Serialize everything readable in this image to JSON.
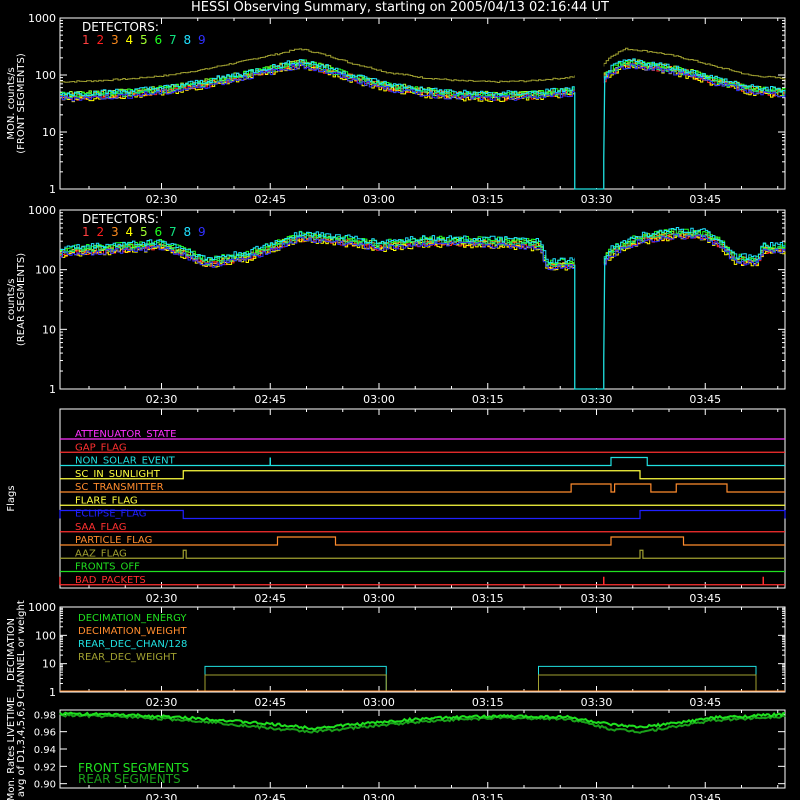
{
  "title": "HESSI Observing Summary, starting on 2005/04/13 02:16:44 UT",
  "time_ticks": [
    "02:30",
    "02:45",
    "03:00",
    "03:15",
    "03:30",
    "03:45"
  ],
  "time_ticks_min": [
    14,
    29,
    44,
    59,
    74,
    89
  ],
  "time_range_min": [
    0,
    100
  ],
  "detector_colors": [
    "#ff4040",
    "#ff2020",
    "#ff8c1e",
    "#ffff00",
    "#a0ff30",
    "#20ff20",
    "#10e080",
    "#20e0ff",
    "#3030ff"
  ],
  "detector_labels": [
    "1",
    "2",
    "3",
    "4",
    "5",
    "6",
    "7",
    "8",
    "9"
  ],
  "colors": {
    "green": "#20e020",
    "cyan": "#20e0e0",
    "orange": "#ff8c2e",
    "olive": "#a0a030",
    "magenta": "#ff30ff",
    "red": "#ff3030",
    "yellow": "#ffff40",
    "blue": "#2020ff",
    "white": "#ffffff"
  },
  "chart_data": [
    {
      "type": "line",
      "name": "front",
      "ylabel": "MON. counts/s (FRONT SEGMENTS)",
      "legend_title": "DETECTORS:",
      "yscale": "log",
      "ylim": [
        1,
        1000
      ],
      "ytick_labels": [
        "1",
        "10",
        "100",
        "1000"
      ],
      "x": [
        0,
        5,
        10,
        15,
        20,
        25,
        30,
        33,
        36,
        40,
        45,
        50,
        55,
        60,
        65,
        70,
        72,
        74,
        76,
        78,
        82,
        86,
        90,
        95,
        100
      ],
      "series_base": [
        42,
        44,
        48,
        55,
        70,
        95,
        130,
        160,
        130,
        90,
        62,
        50,
        44,
        42,
        44,
        50,
        55,
        60,
        120,
        160,
        140,
        110,
        80,
        55,
        48
      ],
      "gap": [
        71,
        75
      ],
      "olive_multiplier": 1.8
    },
    {
      "type": "line",
      "name": "rear",
      "ylabel": "counts/s (REAR SEGMENTS)",
      "legend_title": "DETECTORS:",
      "yscale": "log",
      "ylim": [
        1,
        1000
      ],
      "ytick_labels": [
        "1",
        "10",
        "100",
        "1000"
      ],
      "x": [
        0,
        5,
        10,
        14,
        20,
        26,
        30,
        33,
        38,
        44,
        50,
        56,
        62,
        66,
        67,
        72,
        75,
        76,
        80,
        85,
        89,
        93,
        96,
        97,
        100
      ],
      "series_base": [
        200,
        220,
        240,
        260,
        130,
        170,
        260,
        360,
        320,
        250,
        300,
        290,
        280,
        260,
        120,
        130,
        150,
        200,
        330,
        400,
        380,
        150,
        140,
        220,
        230
      ],
      "gap": [
        71,
        75
      ]
    },
    {
      "type": "table",
      "name": "flags",
      "ylabel": "Flags",
      "flags": [
        {
          "label": "ATTENUATOR_STATE",
          "color": "#ff30ff",
          "steps": []
        },
        {
          "label": "GAP_FLAG",
          "color": "#ff3030",
          "steps": []
        },
        {
          "label": "NON_SOLAR_EVENT",
          "color": "#20e0e0",
          "steps": [
            [
              76,
              81
            ]
          ],
          "spikes": [
            29
          ]
        },
        {
          "label": "SC_IN_SUNLIGHT",
          "color": "#ffff40",
          "steps": [
            [
              17,
              80
            ]
          ]
        },
        {
          "label": "SC_TRANSMITTER",
          "color": "#ff8c2e",
          "steps": [
            [
              70.5,
              76
            ],
            [
              76.5,
              81.5
            ],
            [
              85,
              92
            ]
          ]
        },
        {
          "label": "FLARE_FLAG",
          "color": "#ffff40",
          "steps": []
        },
        {
          "label": "ECLIPSE_FLAG",
          "color": "#2020ff",
          "steps": [
            [
              0,
              17
            ],
            [
              80,
              100
            ]
          ]
        },
        {
          "label": "SAA_FLAG",
          "color": "#ff3030",
          "steps": []
        },
        {
          "label": "PARTICLE_FLAG",
          "color": "#ff8c2e",
          "steps": [
            [
              30,
              38
            ],
            [
              76,
              86
            ]
          ]
        },
        {
          "label": "AAZ_FLAG",
          "color": "#a0a030",
          "steps": [
            [
              17,
              17.4
            ],
            [
              80,
              80.4
            ]
          ]
        },
        {
          "label": "FRONTS_OFF",
          "color": "#20e020",
          "steps": []
        },
        {
          "label": "BAD_PACKETS",
          "color": "#ff3030",
          "steps": [],
          "spikes": [
            0,
            75,
            97
          ]
        }
      ]
    },
    {
      "type": "line",
      "name": "decimation",
      "ylabel": "DECIMATION CHANNEL or weight",
      "yscale": "log",
      "ylim": [
        1,
        1000
      ],
      "ytick_labels": [
        "1",
        "10",
        "100",
        "1000"
      ],
      "legend": [
        {
          "label": "DECIMATION_ENERGY",
          "color": "#20e020"
        },
        {
          "label": "DECIMATION_WEIGHT",
          "color": "#ff8c2e"
        },
        {
          "label": "REAR_DEC_CHAN/128",
          "color": "#20e0e0"
        },
        {
          "label": "REAR_DEC_WEIGHT",
          "color": "#a0a030"
        }
      ],
      "blocks": [
        [
          20,
          45
        ],
        [
          66,
          96
        ]
      ],
      "cyan_level": 8,
      "olive_level": 4
    },
    {
      "type": "line",
      "name": "livetime",
      "ylabel": "Mon. Rates LIVETIME avg of D1,3,4,5,6,9",
      "ylim": [
        0.895,
        0.985
      ],
      "yticks": [
        0.9,
        0.92,
        0.94,
        0.96,
        0.98
      ],
      "ytick_labels": [
        "0.90",
        "0.92",
        "0.94",
        "0.96",
        "0.98"
      ],
      "x": [
        0,
        10,
        20,
        30,
        35,
        40,
        50,
        60,
        70,
        76,
        80,
        85,
        90,
        100
      ],
      "front": [
        0.981,
        0.979,
        0.975,
        0.968,
        0.964,
        0.968,
        0.975,
        0.978,
        0.977,
        0.968,
        0.965,
        0.97,
        0.976,
        0.98
      ],
      "rear": [
        0.979,
        0.977,
        0.972,
        0.963,
        0.96,
        0.964,
        0.972,
        0.976,
        0.975,
        0.963,
        0.96,
        0.966,
        0.973,
        0.978
      ],
      "legend": [
        {
          "label": "FRONT SEGMENTS",
          "color": "#20e020"
        },
        {
          "label": "REAR SEGMENTS",
          "color": "#1aa01a"
        }
      ]
    }
  ]
}
